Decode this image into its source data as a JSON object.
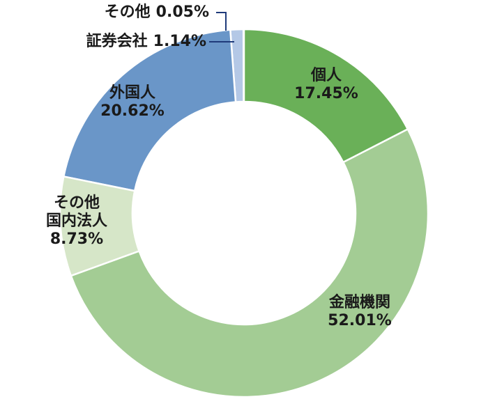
{
  "chart_data": {
    "type": "donut",
    "categories": [
      "個人",
      "金融機関",
      "その他\n国内法人",
      "外国人",
      "証券会社",
      "その他"
    ],
    "values": [
      17.45,
      52.01,
      8.73,
      20.62,
      1.14,
      0.05
    ],
    "value_labels": [
      "17.45%",
      "52.01%",
      "8.73%",
      "20.62%",
      "1.14%",
      "0.05%"
    ],
    "colors": [
      "#6ab058",
      "#a3cc94",
      "#d6e6c8",
      "#6a96c8",
      "#b4c8e6",
      "#c9d8ef"
    ]
  }
}
